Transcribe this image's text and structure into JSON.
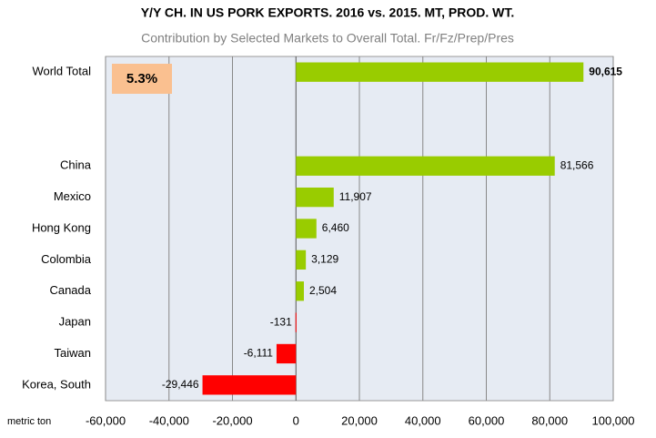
{
  "chart_data": {
    "type": "bar",
    "orientation": "horizontal",
    "title": "Y/Y CH.  IN US PORK EXPORTS. 2016 vs. 2015.   MT, PROD. WT.",
    "subtitle": "Contribution by Selected Markets to Overall Total. Fr/Fz/Prep/Pres",
    "annotation": "5.3%",
    "x_axis_label": "metric ton",
    "categories": [
      "World Total",
      null,
      null,
      "China",
      "Mexico",
      "Hong Kong",
      "Colombia",
      "Canada",
      "Japan",
      "Taiwan",
      "Korea, South"
    ],
    "values": [
      90615,
      null,
      null,
      81566,
      11907,
      6460,
      3129,
      2504,
      -131,
      -6111,
      -29446
    ],
    "value_labels": [
      "90,615",
      null,
      null,
      "81,566",
      "11,907",
      "6,460",
      "3,129",
      "2,504",
      "-131",
      "-6,111",
      "-29,446"
    ],
    "positive_color": "#99cc00",
    "negative_color": "#ff0000",
    "xlim": [
      -60000,
      100000
    ],
    "xticks": [
      {
        "value": -60000,
        "label": "-60,000"
      },
      {
        "value": -40000,
        "label": "-40,000"
      },
      {
        "value": -20000,
        "label": "-20,000"
      },
      0,
      {
        "value": 20000,
        "label": "20,000"
      },
      {
        "value": 40000,
        "label": "40,000"
      },
      {
        "value": 60000,
        "label": "60,000"
      },
      {
        "value": 80000,
        "label": "80,000"
      },
      {
        "value": 100000,
        "label": "100,000"
      }
    ],
    "grid": true
  }
}
